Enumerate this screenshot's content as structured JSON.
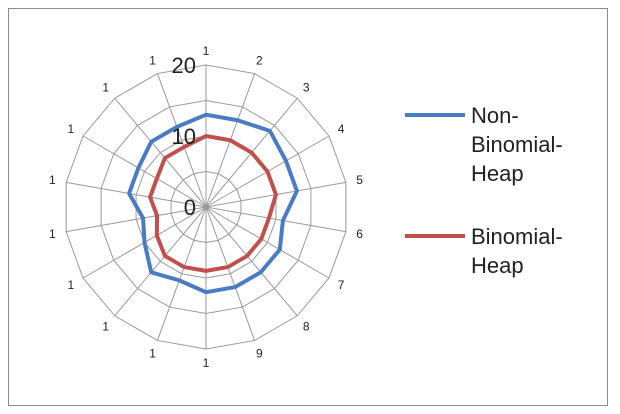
{
  "chart_data": {
    "type": "radar",
    "categories": [
      "1",
      "2",
      "3",
      "4",
      "5",
      "6",
      "7",
      "8",
      "9",
      "1",
      "1",
      "1",
      "1",
      "1",
      "1",
      "1",
      "1",
      "1"
    ],
    "axis_ticks": [
      "0",
      "10",
      "20"
    ],
    "rmax": 20,
    "grid": true,
    "legend": "right",
    "series": [
      {
        "name": "Non-Binomial-Heap",
        "color": "#4a7cc4",
        "legend_lines": [
          "Non-",
          "Binomial-",
          "Heap"
        ],
        "values": [
          13,
          13,
          14,
          13,
          13,
          11,
          12,
          12,
          12,
          12,
          11,
          12,
          10,
          9,
          11,
          11,
          12,
          12
        ]
      },
      {
        "name": "Binomial-Heap",
        "color": "#c0504d",
        "legend_lines": [
          "Binomial-",
          "Heap"
        ],
        "values": [
          10,
          10,
          10,
          10,
          10,
          9,
          9,
          9,
          9,
          9,
          9,
          9,
          8,
          7,
          8,
          8,
          9,
          9
        ]
      }
    ]
  }
}
